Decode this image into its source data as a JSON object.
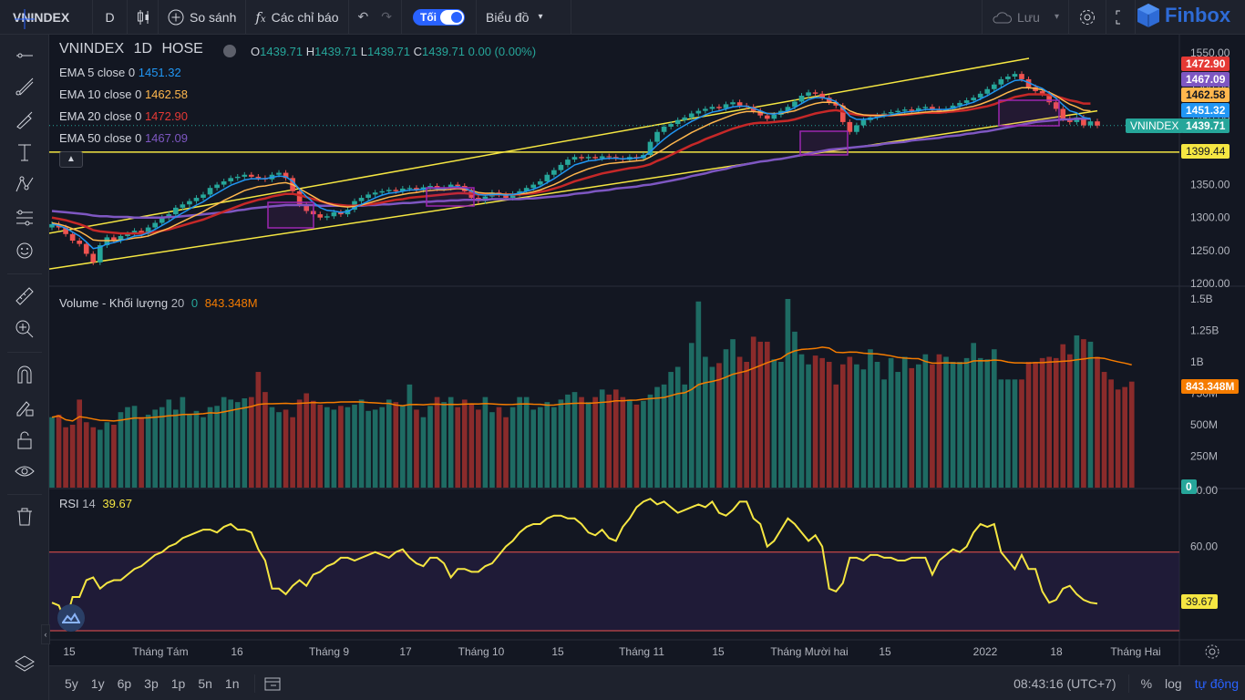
{
  "topbar": {
    "symbol": "VNINDEX",
    "interval": "D",
    "compare_label": "So sánh",
    "indicators_label": "Các chỉ báo",
    "theme_label": "Tối",
    "chart_type_label": "Biểu đồ",
    "save_label": "Lưu",
    "brand": "Finbox"
  },
  "legend": {
    "title": "VNINDEX",
    "timeframe": "1D",
    "exchange": "HOSE",
    "open_label": "O",
    "open": "1439.71",
    "high_label": "H",
    "high": "1439.71",
    "low_label": "L",
    "low": "1439.71",
    "close_label": "C",
    "close": "1439.71",
    "change": "0.00 (0.00%)",
    "ema": [
      {
        "label": "EMA 5 close 0",
        "value": "1451.32",
        "color": "#2196f3"
      },
      {
        "label": "EMA 10 close 0",
        "value": "1462.58",
        "color": "#ffb74d"
      },
      {
        "label": "EMA 20 close 0",
        "value": "1472.90",
        "color": "#e53935"
      },
      {
        "label": "EMA 50 close 0",
        "value": "1467.09",
        "color": "#7e57c2"
      }
    ],
    "volume_label": "Volume - Khối lượng",
    "volume_period": "20",
    "volume_zero": "0",
    "volume_value": "843.348M",
    "rsi_label": "RSI",
    "rsi_period": "14",
    "rsi_value": "39.67"
  },
  "price_labels": {
    "ema20": "1472.90",
    "ema50": "1467.09",
    "ema10": "1462.58",
    "ema5": "1451.32",
    "symbol_tag": "VNINDEX",
    "last": "1439.71",
    "support": "1399.44",
    "volume_last": "843.348M",
    "volume_zero": "0",
    "rsi_last": "39.67"
  },
  "price_axis": [
    "1550.00",
    "1500.00",
    "1450.00",
    "1400.00",
    "1350.00",
    "1300.00",
    "1250.00",
    "1200.00"
  ],
  "volume_axis": [
    "1.5B",
    "1.25B",
    "1B",
    "750M",
    "500M",
    "250M"
  ],
  "rsi_axis": [
    "80.00",
    "60.00"
  ],
  "time_axis": [
    "15",
    "Tháng Tám",
    "16",
    "Tháng 9",
    "17",
    "Tháng 10",
    "15",
    "Tháng 11",
    "15",
    "Tháng Mười hai",
    "15",
    "2022",
    "18",
    "Tháng Hai"
  ],
  "bottombar": {
    "ranges": [
      "5y",
      "1y",
      "6p",
      "3p",
      "1p",
      "5n",
      "1n"
    ],
    "clock": "08:43:16 (UTC+7)",
    "percent": "%",
    "log": "log",
    "auto": "tự động"
  },
  "colors": {
    "up": "#26a69a",
    "down": "#ef5350",
    "trend": "#f5e642",
    "highlight": "#9c27b0",
    "bg": "#131722",
    "panel": "#1e222d"
  },
  "chart_data": {
    "type": "candlestick",
    "price_ylim": [
      1200,
      1550
    ],
    "volume_ylim": [
      0,
      1500000000
    ],
    "rsi_ylim": [
      30,
      80
    ],
    "rsi_bands": [
      30,
      58
    ],
    "closes": [
      1290,
      1285,
      1275,
      1265,
      1260,
      1245,
      1232,
      1258,
      1270,
      1265,
      1272,
      1275,
      1280,
      1275,
      1285,
      1292,
      1300,
      1305,
      1315,
      1320,
      1325,
      1330,
      1335,
      1345,
      1350,
      1355,
      1360,
      1362,
      1365,
      1362,
      1360,
      1358,
      1365,
      1368,
      1360,
      1340,
      1320,
      1310,
      1305,
      1300,
      1302,
      1308,
      1305,
      1312,
      1325,
      1330,
      1335,
      1338,
      1340,
      1342,
      1340,
      1344,
      1345,
      1342,
      1346,
      1348,
      1344,
      1345,
      1350,
      1348,
      1340,
      1330,
      1325,
      1332,
      1338,
      1335,
      1330,
      1336,
      1340,
      1345,
      1350,
      1355,
      1365,
      1372,
      1380,
      1388,
      1392,
      1390,
      1392,
      1390,
      1393,
      1392,
      1390,
      1388,
      1392,
      1390,
      1395,
      1415,
      1430,
      1438,
      1442,
      1448,
      1452,
      1458,
      1462,
      1465,
      1468,
      1466,
      1472,
      1475,
      1470,
      1468,
      1462,
      1455,
      1450,
      1456,
      1462,
      1468,
      1476,
      1485,
      1490,
      1488,
      1482,
      1475,
      1470,
      1445,
      1430,
      1440,
      1448,
      1452,
      1455,
      1458,
      1460,
      1462,
      1464,
      1462,
      1466,
      1468,
      1465,
      1462,
      1465,
      1470,
      1474,
      1478,
      1482,
      1488,
      1495,
      1502,
      1510,
      1514,
      1518,
      1510,
      1498,
      1492,
      1488,
      1475,
      1465,
      1450,
      1445,
      1452,
      1440,
      1446,
      1439.71
    ],
    "ema5": [
      1290,
      1288,
      1284,
      1278,
      1272,
      1263,
      1253,
      1255,
      1260,
      1262,
      1265,
      1268,
      1272,
      1273,
      1277,
      1282,
      1288,
      1294,
      1301,
      1307,
      1313,
      1319,
      1324,
      1331,
      1337,
      1343,
      1349,
      1353,
      1357,
      1359,
      1359,
      1359,
      1361,
      1363,
      1362,
      1355,
      1343,
      1332,
      1323,
      1315,
      1311,
      1310,
      1308,
      1309,
      1315,
      1320,
      1325,
      1330,
      1334,
      1337,
      1338,
      1340,
      1342,
      1342,
      1343,
      1345,
      1344,
      1344,
      1346,
      1347,
      1345,
      1340,
      1335,
      1334,
      1335,
      1335,
      1334,
      1335,
      1337,
      1340,
      1343,
      1347,
      1353,
      1359,
      1366,
      1373,
      1380,
      1383,
      1386,
      1387,
      1389,
      1390,
      1390,
      1389,
      1390,
      1390,
      1392,
      1400,
      1410,
      1419,
      1427,
      1434,
      1440,
      1446,
      1451,
      1456,
      1460,
      1462,
      1465,
      1468,
      1469,
      1469,
      1466,
      1462,
      1458,
      1457,
      1459,
      1462,
      1467,
      1473,
      1479,
      1482,
      1482,
      1480,
      1476,
      1466,
      1454,
      1449,
      1449,
      1450,
      1452,
      1454,
      1456,
      1458,
      1460,
      1461,
      1462,
      1464,
      1464,
      1464,
      1464,
      1466,
      1469,
      1472,
      1475,
      1480,
      1485,
      1491,
      1497,
      1503,
      1508,
      1509,
      1505,
      1500,
      1496,
      1489,
      1481,
      1471,
      1462,
      1459,
      1452,
      1450,
      1451.32
    ],
    "ema10": [
      1292,
      1290,
      1287,
      1283,
      1279,
      1273,
      1266,
      1265,
      1265,
      1265,
      1266,
      1267,
      1269,
      1270,
      1272,
      1276,
      1280,
      1284,
      1289,
      1294,
      1299,
      1304,
      1309,
      1315,
      1320,
      1326,
      1331,
      1336,
      1341,
      1344,
      1347,
      1348,
      1350,
      1352,
      1353,
      1350,
      1344,
      1338,
      1332,
      1326,
      1322,
      1319,
      1317,
      1316,
      1317,
      1319,
      1322,
      1325,
      1328,
      1331,
      1333,
      1335,
      1337,
      1338,
      1340,
      1341,
      1342,
      1342,
      1343,
      1344,
      1343,
      1341,
      1338,
      1337,
      1337,
      1336,
      1335,
      1335,
      1336,
      1337,
      1339,
      1342,
      1346,
      1350,
      1355,
      1361,
      1366,
      1370,
      1374,
      1377,
      1380,
      1382,
      1383,
      1384,
      1385,
      1386,
      1387,
      1392,
      1398,
      1404,
      1411,
      1417,
      1423,
      1429,
      1434,
      1439,
      1444,
      1448,
      1452,
      1456,
      1459,
      1461,
      1461,
      1460,
      1458,
      1458,
      1458,
      1460,
      1462,
      1466,
      1470,
      1473,
      1475,
      1475,
      1474,
      1469,
      1462,
      1458,
      1456,
      1455,
      1455,
      1455,
      1455,
      1456,
      1457,
      1458,
      1459,
      1460,
      1461,
      1461,
      1462,
      1463,
      1465,
      1467,
      1469,
      1472,
      1476,
      1480,
      1485,
      1490,
      1494,
      1497,
      1497,
      1496,
      1494,
      1490,
      1485,
      1478,
      1472,
      1468,
      1463,
      1462,
      1462.58
    ],
    "ema20": [
      1300,
      1298,
      1296,
      1293,
      1290,
      1286,
      1281,
      1279,
      1278,
      1277,
      1276,
      1276,
      1276,
      1276,
      1277,
      1278,
      1280,
      1282,
      1285,
      1288,
      1291,
      1294,
      1297,
      1301,
      1305,
      1309,
      1313,
      1317,
      1321,
      1324,
      1327,
      1329,
      1332,
      1334,
      1336,
      1336,
      1334,
      1331,
      1328,
      1325,
      1322,
      1320,
      1319,
      1318,
      1318,
      1319,
      1320,
      1321,
      1323,
      1325,
      1327,
      1328,
      1330,
      1331,
      1332,
      1333,
      1334,
      1335,
      1336,
      1337,
      1337,
      1336,
      1335,
      1335,
      1335,
      1335,
      1335,
      1335,
      1335,
      1336,
      1337,
      1339,
      1341,
      1344,
      1347,
      1351,
      1355,
      1358,
      1361,
      1364,
      1367,
      1369,
      1371,
      1373,
      1375,
      1376,
      1378,
      1381,
      1386,
      1390,
      1395,
      1400,
      1405,
      1410,
      1414,
      1419,
      1423,
      1427,
      1431,
      1435,
      1438,
      1441,
      1443,
      1444,
      1444,
      1445,
      1446,
      1447,
      1449,
      1452,
      1455,
      1458,
      1460,
      1462,
      1463,
      1461,
      1458,
      1456,
      1455,
      1455,
      1455,
      1455,
      1455,
      1456,
      1456,
      1457,
      1458,
      1459,
      1459,
      1459,
      1460,
      1461,
      1462,
      1463,
      1465,
      1467,
      1469,
      1472,
      1476,
      1479,
      1483,
      1485,
      1487,
      1487,
      1487,
      1486,
      1484,
      1481,
      1478,
      1476,
      1473,
      1473,
      1472.9
    ],
    "ema50": [
      1310,
      1309,
      1308,
      1307,
      1306,
      1305,
      1303,
      1302,
      1302,
      1301,
      1301,
      1301,
      1300,
      1300,
      1300,
      1300,
      1300,
      1301,
      1301,
      1302,
      1303,
      1304,
      1305,
      1306,
      1307,
      1308,
      1309,
      1311,
      1312,
      1314,
      1315,
      1316,
      1317,
      1318,
      1319,
      1319,
      1319,
      1319,
      1319,
      1318,
      1318,
      1318,
      1318,
      1318,
      1318,
      1318,
      1319,
      1319,
      1320,
      1320,
      1321,
      1322,
      1322,
      1323,
      1324,
      1324,
      1325,
      1325,
      1326,
      1326,
      1327,
      1327,
      1327,
      1327,
      1328,
      1328,
      1328,
      1328,
      1328,
      1329,
      1329,
      1330,
      1331,
      1332,
      1333,
      1334,
      1336,
      1337,
      1338,
      1340,
      1341,
      1342,
      1344,
      1345,
      1346,
      1347,
      1349,
      1350,
      1352,
      1354,
      1356,
      1358,
      1360,
      1363,
      1365,
      1367,
      1370,
      1372,
      1374,
      1377,
      1379,
      1381,
      1383,
      1385,
      1386,
      1388,
      1389,
      1391,
      1393,
      1395,
      1397,
      1399,
      1401,
      1403,
      1404,
      1405,
      1406,
      1407,
      1408,
      1409,
      1410,
      1412,
      1413,
      1414,
      1415,
      1417,
      1418,
      1419,
      1420,
      1421,
      1423,
      1424,
      1425,
      1427,
      1428,
      1430,
      1431,
      1433,
      1435,
      1437,
      1439,
      1441,
      1443,
      1445,
      1446,
      1447,
      1448,
      1449,
      1449,
      1450,
      1450,
      1450,
      1451,
      1467.09
    ],
    "volume": [
      560,
      580,
      480,
      500,
      700,
      520,
      480,
      460,
      520,
      500,
      600,
      640,
      650,
      560,
      580,
      620,
      640,
      700,
      620,
      720,
      580,
      610,
      560,
      640,
      650,
      720,
      700,
      680,
      710,
      720,
      920,
      760,
      640,
      600,
      620,
      560,
      700,
      750,
      690,
      660,
      640,
      620,
      650,
      640,
      660,
      700,
      610,
      620,
      640,
      700,
      680,
      650,
      820,
      620,
      560,
      650,
      720,
      680,
      720,
      640,
      700,
      660,
      620,
      720,
      600,
      640,
      560,
      640,
      720,
      720,
      620,
      640,
      680,
      640,
      700,
      740,
      760,
      720,
      680,
      720,
      780,
      740,
      780,
      720,
      700,
      660,
      690,
      740,
      800,
      820,
      920,
      960,
      820,
      1150,
      1480,
      1040,
      960,
      990,
      1100,
      1180,
      1040,
      1000,
      1200,
      1160,
      1160,
      1020,
      1000,
      1500,
      1240,
      1060,
      980,
      1050,
      1030,
      1000,
      820,
      980,
      1040,
      980,
      940,
      1100,
      1000,
      860,
      1030,
      920,
      1040,
      950,
      980,
      1060,
      980,
      1060,
      1040,
      1000,
      1000,
      1030,
      1150,
      1030,
      1020,
      1100,
      860,
      860,
      860,
      860,
      1000,
      1000,
      1030,
      1040,
      1030,
      1140,
      1060,
      1210,
      1180,
      1160,
      1040,
      920,
      860,
      780,
      800,
      843
    ],
    "rsi": [
      40,
      39,
      33,
      42,
      42,
      48,
      49,
      45,
      47,
      48,
      48,
      50,
      52,
      53,
      55,
      57,
      58,
      60,
      61,
      63,
      64,
      65,
      66,
      66,
      65,
      67,
      68,
      66,
      66,
      65,
      59,
      55,
      45,
      45,
      43,
      46,
      48,
      46,
      50,
      51,
      53,
      54,
      56,
      56,
      55,
      56,
      57,
      58,
      57,
      56,
      58,
      59,
      56,
      54,
      53,
      56,
      56,
      54,
      49,
      52,
      52,
      51,
      51,
      53,
      54,
      57,
      60,
      62,
      65,
      67,
      68,
      68,
      70,
      71,
      71,
      70,
      70,
      68,
      65,
      64,
      66,
      63,
      62,
      67,
      70,
      74,
      76,
      77,
      75,
      76,
      74,
      72,
      73,
      74,
      75,
      74,
      76,
      72,
      71,
      73,
      76,
      76,
      70,
      68,
      60,
      62,
      66,
      70,
      68,
      65,
      62,
      64,
      60,
      45,
      44,
      47,
      56,
      56,
      55,
      57,
      57,
      56,
      56,
      55,
      55,
      56,
      56,
      56,
      50,
      55,
      57,
      59,
      58,
      60,
      65,
      68,
      67,
      68,
      58,
      55,
      52,
      57,
      52,
      52,
      44,
      40,
      41,
      45,
      46,
      43,
      41,
      40,
      39.67
    ],
    "trend_lines": [
      {
        "from": [
          "2021-07-15",
          1290
        ],
        "to": [
          "2022-01-25",
          1550
        ]
      },
      {
        "from": [
          "2021-07-15",
          1222
        ],
        "to": [
          "2022-01-25",
          1462
        ]
      },
      {
        "type": "horizontal",
        "value": 1399.44
      }
    ]
  }
}
